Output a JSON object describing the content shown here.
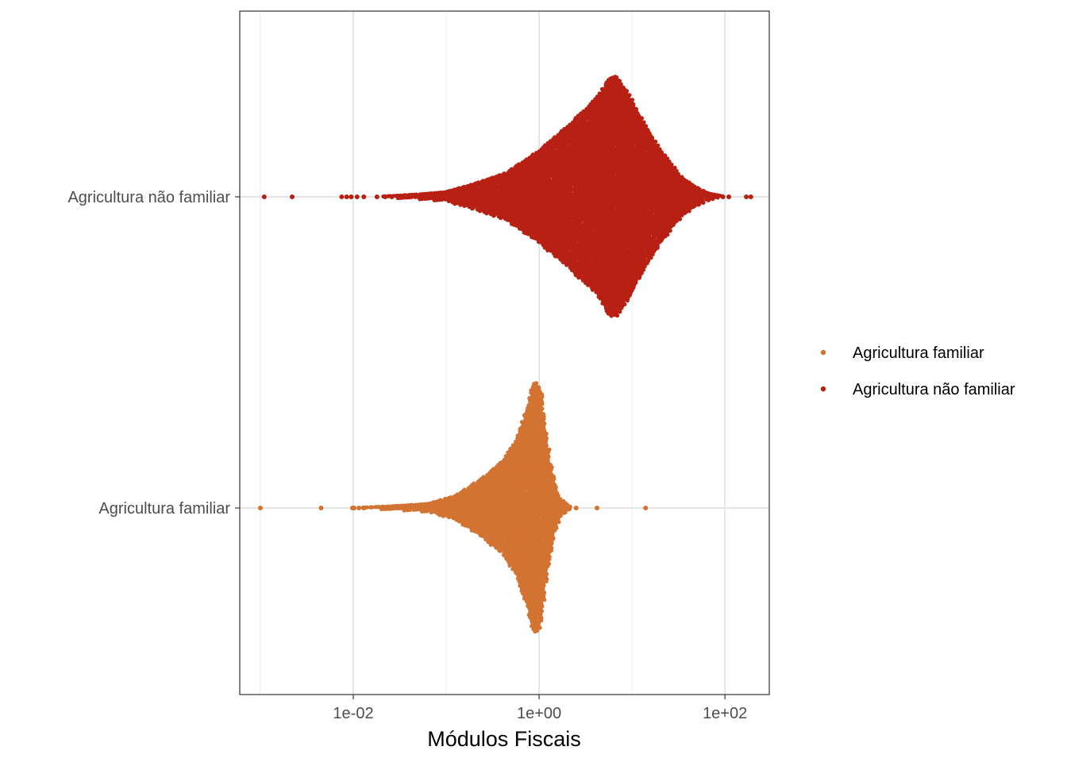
{
  "chart_data": {
    "type": "scatter",
    "subtype": "beeswarm",
    "title": "",
    "xlabel": "Módulos Fiscais",
    "ylabel": "",
    "x_scale": "log10",
    "xlim": [
      0.0006,
      300
    ],
    "x_ticks": [
      {
        "value": 0.01,
        "label": "1e-02"
      },
      {
        "value": 1,
        "label": "1e+00"
      },
      {
        "value": 100,
        "label": "1e+02"
      }
    ],
    "categories": [
      "Agricultura não familiar",
      "Agricultura familiar"
    ],
    "grid": true,
    "legend_position": "right",
    "series": [
      {
        "name": "Agricultura familiar",
        "color": "#D37332",
        "min": 0.001,
        "max": 14,
        "mode": 0.85,
        "outliers": [
          0.001,
          0.0045,
          0.0098,
          0.0102,
          0.0115,
          0.013,
          2.5,
          4.2,
          14
        ]
      },
      {
        "name": "Agricultura não familiar",
        "color": "#B72013",
        "min": 0.0011,
        "max": 190,
        "mode": 6.8,
        "outliers": [
          0.0011,
          0.0022,
          0.0075,
          0.0085,
          0.0095,
          0.011,
          0.013,
          0.018,
          0.022,
          0.026,
          95,
          110,
          170,
          190
        ]
      }
    ]
  }
}
